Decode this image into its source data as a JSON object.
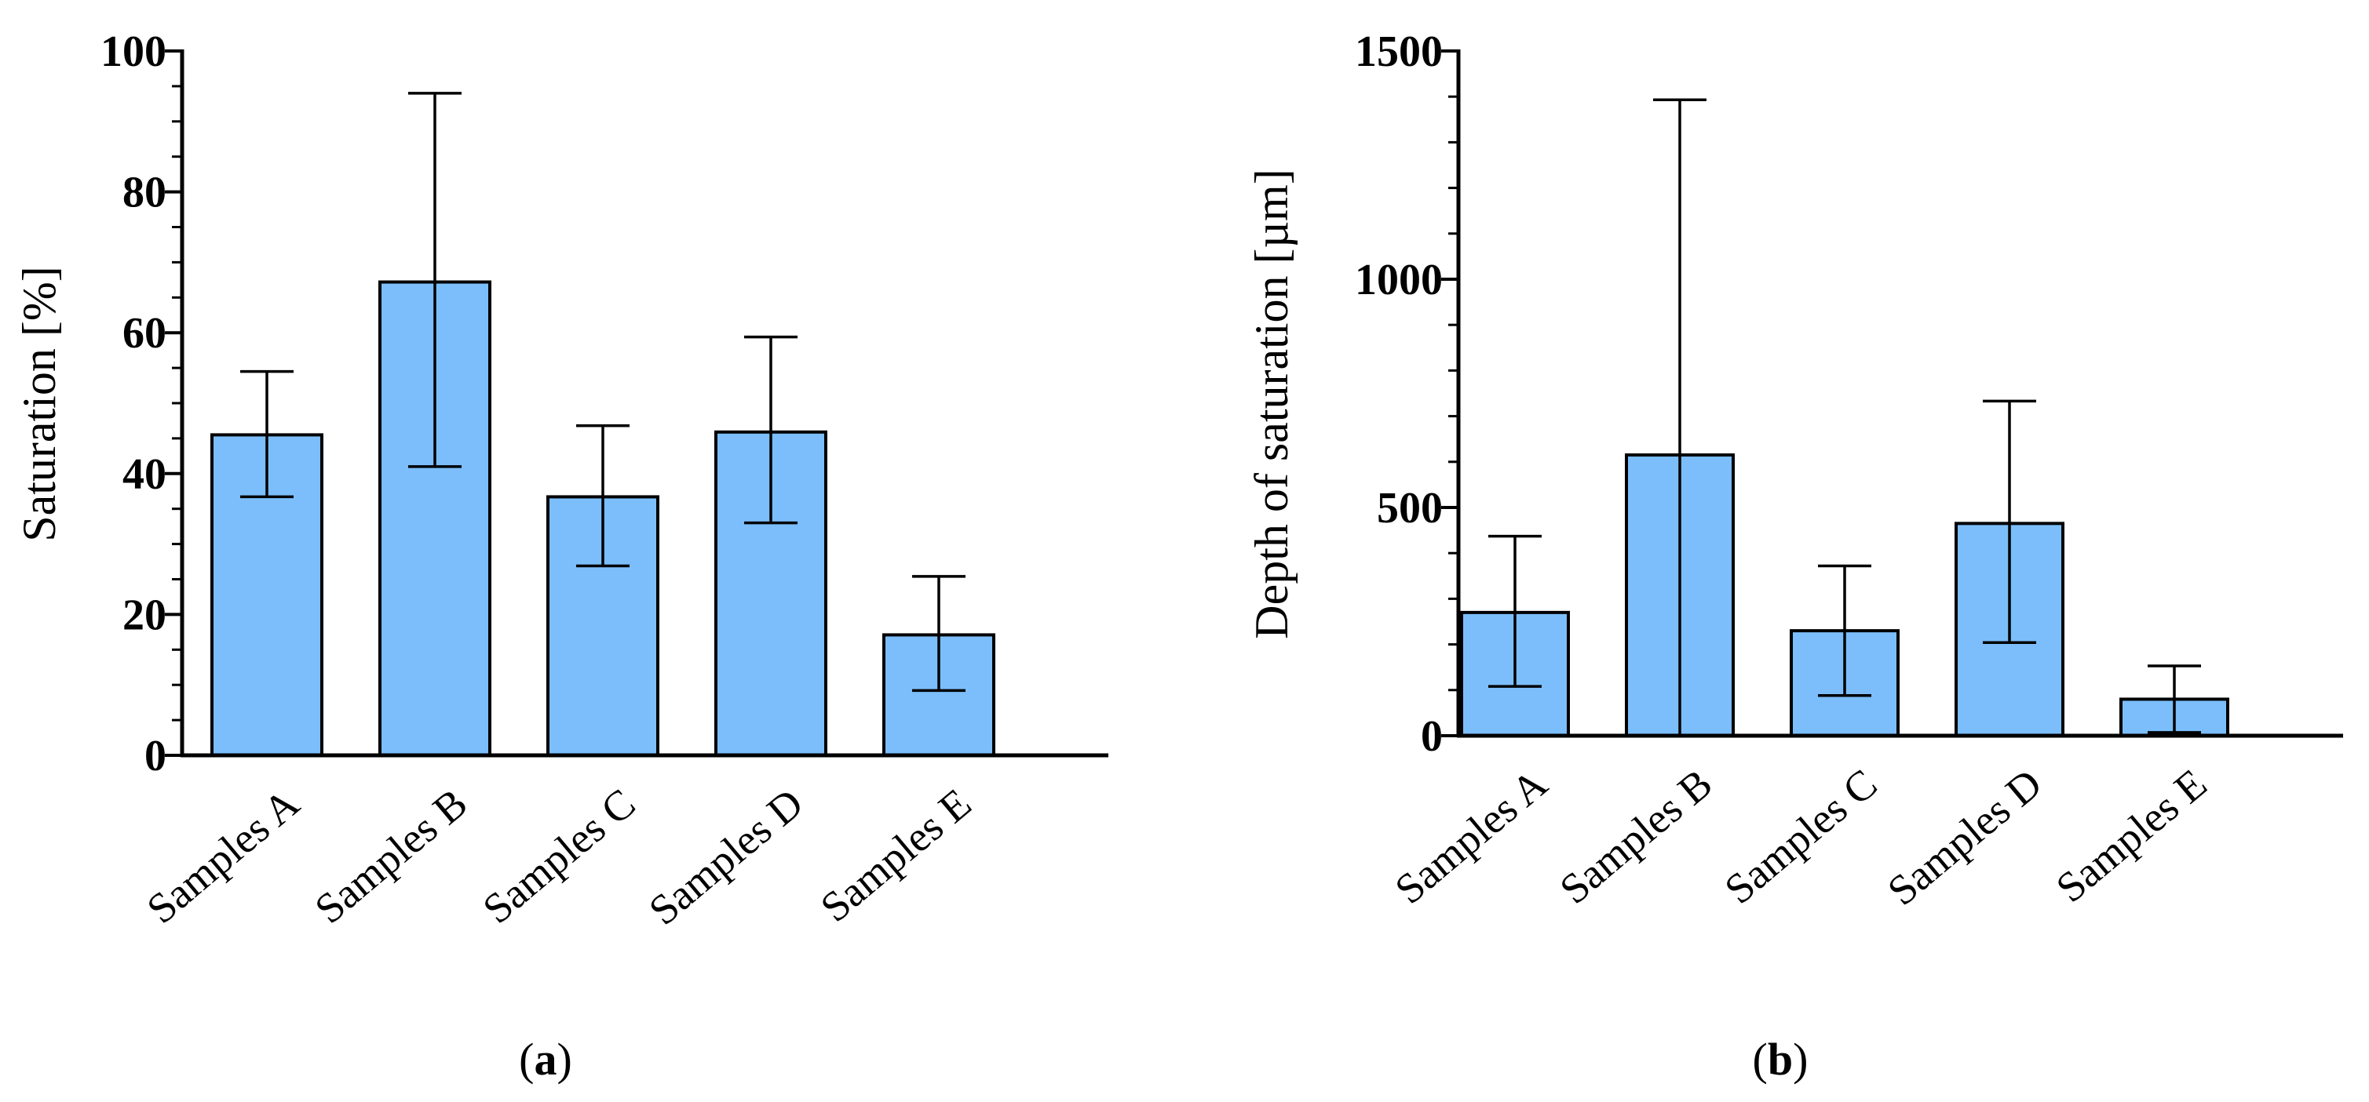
{
  "colors": {
    "bar_fill": "#7bbefb",
    "bar_stroke": "#000000",
    "axis": "#000000"
  },
  "chart_data": [
    {
      "id": "a",
      "type": "bar",
      "panel_label": "a",
      "title": "",
      "xlabel": "",
      "ylabel": "Saturation [%]",
      "categories": [
        "Samples A",
        "Samples B",
        "Samples C",
        "Samples D",
        "Samples E"
      ],
      "values": [
        45.5,
        67.2,
        36.7,
        45.9,
        17.1
      ],
      "error_upper": [
        54.5,
        94.0,
        46.8,
        59.4,
        25.4
      ],
      "error_lower": [
        36.7,
        41.0,
        26.9,
        33.0,
        9.2
      ],
      "ylim": [
        0,
        100
      ],
      "yticks": [
        0,
        20,
        40,
        60,
        80,
        100
      ],
      "ytick_labels": [
        "0",
        "20",
        "40",
        "60",
        "80",
        "100"
      ],
      "minor_step": 5,
      "grid": false,
      "legend": "none"
    },
    {
      "id": "b",
      "type": "bar",
      "panel_label": "b",
      "title": "",
      "xlabel": "",
      "ylabel": "Depth of saturation [µm]",
      "categories": [
        "Samples A",
        "Samples B",
        "Samples C",
        "Samples D",
        "Samples E"
      ],
      "values": [
        270,
        615,
        230,
        465,
        80
      ],
      "error_upper": [
        437,
        1393,
        372,
        733,
        153
      ],
      "error_lower": [
        108,
        0,
        88,
        204,
        7
      ],
      "ylim": [
        0,
        1500
      ],
      "yticks": [
        0,
        500,
        1000,
        1500
      ],
      "ytick_labels": [
        "0",
        "500",
        "1000",
        "1500"
      ],
      "minor_step": 100,
      "grid": false,
      "legend": "none"
    }
  ]
}
